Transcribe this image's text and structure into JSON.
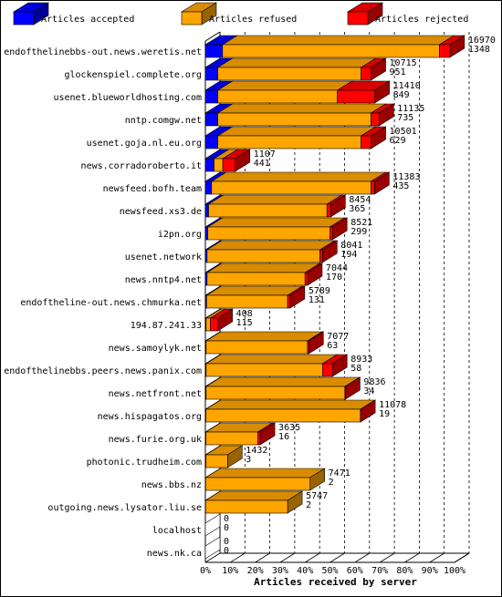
{
  "colors": {
    "accepted": "#0000ff",
    "refused": "#ffa500",
    "rejected": "#ff0000",
    "grid": "#000000",
    "background": "#ffffff"
  },
  "chart_data": {
    "type": "bar",
    "orientation": "horizontal",
    "stacked": true,
    "style": "3d",
    "xlabel": "Articles received by server",
    "xlim": [
      0,
      100
    ],
    "x_ticks": [
      "0%",
      "10%",
      "20%",
      "30%",
      "40%",
      "50%",
      "60%",
      "70%",
      "80%",
      "90%",
      "100%"
    ],
    "grid": "dashed vertical",
    "legend": {
      "position": "top",
      "entries": [
        "Articles accepted",
        "Articles refused",
        "Articles rejected"
      ]
    },
    "categories": [
      "endofthelinebbs-out.news.weretis.net",
      "glockenspiel.complete.org",
      "usenet.blueworldhosting.com",
      "nntp.comgw.net",
      "usenet.goja.nl.eu.org",
      "news.corradoroberto.it",
      "newsfeed.bofh.team",
      "newsfeed.xs3.de",
      "i2pn.org",
      "usenet.network",
      "news.nntp4.net",
      "endoftheline-out.news.chmurka.net",
      "194.87.241.33",
      "news.samoylyk.net",
      "endofthelinebbs.peers.news.panix.com",
      "news.netfront.net",
      "news.hispagatos.org",
      "news.furie.org.uk",
      "photonic.trudheim.com",
      "news.bbs.nz",
      "outgoing.news.lysator.liu.se",
      "localhost",
      "news.nk.ca"
    ],
    "series": [
      {
        "name": "Articles accepted",
        "values": [
          6.9,
          5.0,
          5.0,
          5.0,
          5.0,
          3.5,
          2.5,
          1.3,
          1.0,
          0.7,
          0.7,
          0.5,
          0.3,
          0.3,
          0.3,
          0.3,
          0.2,
          0.2,
          0.2,
          0.1,
          0.1,
          0,
          0
        ]
      },
      {
        "name": "Articles refused",
        "values": [
          87.0,
          57.5,
          48.0,
          61.5,
          57.5,
          3.5,
          64.0,
          47.5,
          49.0,
          45.3,
          39.3,
          32.5,
          1.7,
          40.7,
          46.7,
          55.7,
          62.0,
          20.8,
          8.7,
          41.9,
          32.9,
          0,
          0
        ]
      },
      {
        "name": "Articles rejected",
        "values": [
          4.2,
          4.0,
          15.0,
          3.2,
          4.0,
          5.0,
          1.4,
          1.5,
          1.0,
          1.0,
          1.0,
          1.0,
          3.0,
          0.5,
          4.0,
          0.2,
          0.1,
          1.0,
          0,
          0,
          0,
          0,
          0
        ]
      }
    ],
    "data_labels": [
      [
        "16970",
        "1348"
      ],
      [
        "10715",
        "951"
      ],
      [
        "11410",
        "849"
      ],
      [
        "11135",
        "735"
      ],
      [
        "10501",
        "629"
      ],
      [
        "1107",
        "441"
      ],
      [
        "11383",
        "435"
      ],
      [
        "8454",
        "365"
      ],
      [
        "8521",
        "299"
      ],
      [
        "8041",
        "194"
      ],
      [
        "7044",
        "170"
      ],
      [
        "5789",
        "131"
      ],
      [
        "408",
        "115"
      ],
      [
        "7077",
        "63"
      ],
      [
        "8933",
        "58"
      ],
      [
        "9836",
        "34"
      ],
      [
        "11078",
        "19"
      ],
      [
        "3635",
        "16"
      ],
      [
        "1432",
        "3"
      ],
      [
        "7471",
        "2"
      ],
      [
        "5747",
        "2"
      ],
      [
        "0",
        "0"
      ],
      [
        "0",
        "0"
      ]
    ]
  }
}
